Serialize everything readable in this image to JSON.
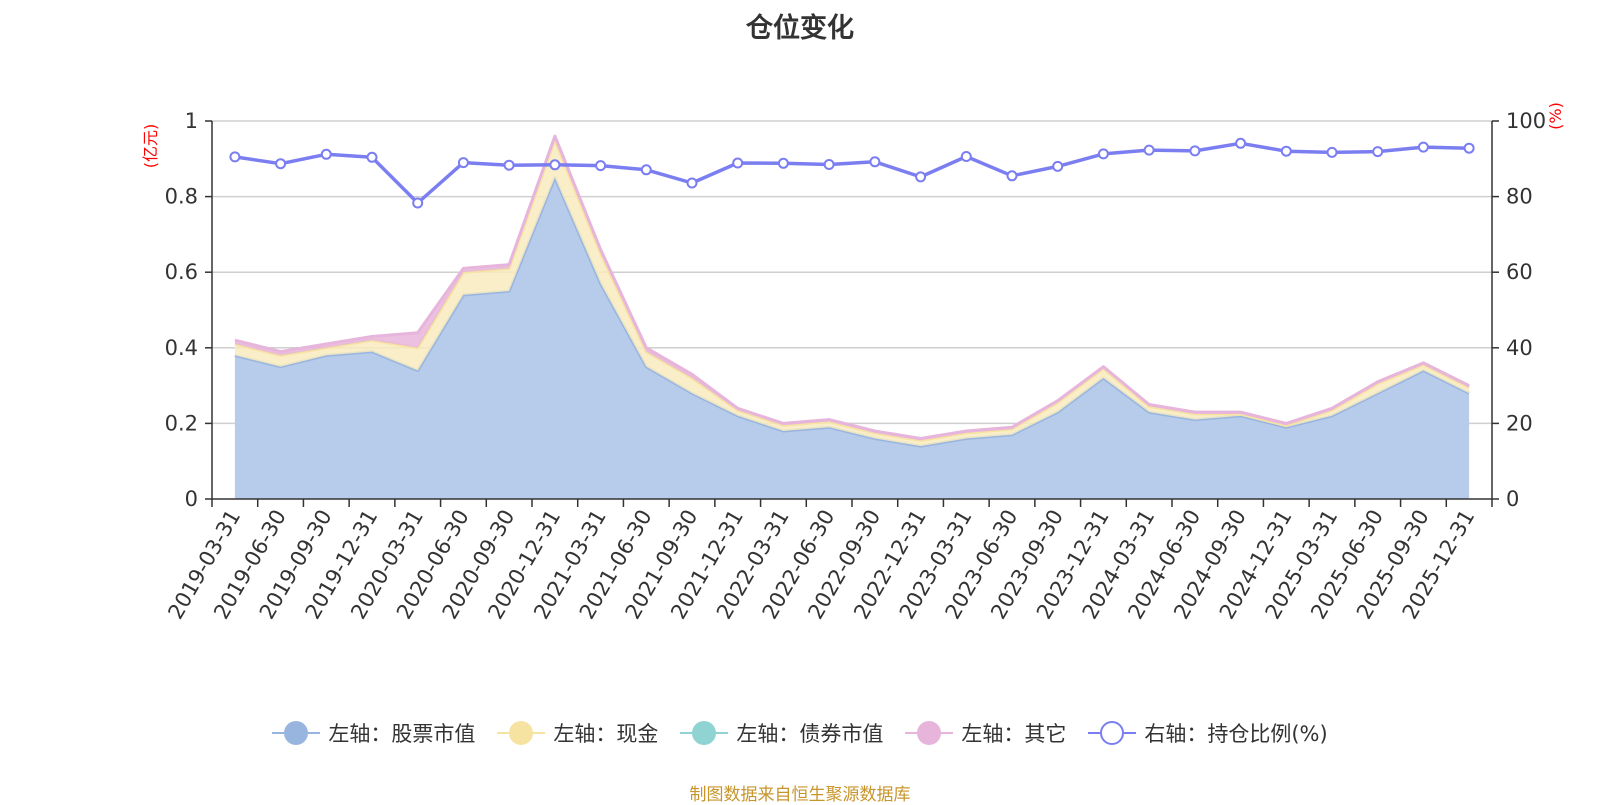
{
  "title": "仓位变化",
  "source_note": "制图数据来自恒生聚源数据库",
  "colors": {
    "stock": "#98b5e0",
    "stock_fill": "#b7cbea",
    "cash": "#f6e3a1",
    "cash_fill": "#f8ebbe",
    "bond": "#8fd3d3",
    "other": "#e7b5dc",
    "ratio": "#7b7ef1",
    "axis_unit": "#ff0000",
    "source": "#c8952b"
  },
  "chart_data": {
    "type": "area",
    "title": "仓位变化",
    "left_axis": {
      "unit_label": "(亿元)",
      "ylim": [
        0,
        1
      ],
      "ticks": [
        "0",
        "0.2",
        "0.4",
        "0.6",
        "0.8",
        "1"
      ]
    },
    "right_axis": {
      "unit_label": "(%)",
      "ylim": [
        0,
        100
      ],
      "ticks": [
        "0",
        "20",
        "40",
        "60",
        "80",
        "100"
      ]
    },
    "categories": [
      "2019-03-31",
      "2019-06-30",
      "2019-09-30",
      "2019-12-31",
      "2020-03-31",
      "2020-06-30",
      "2020-09-30",
      "2020-12-31",
      "2021-03-31",
      "2021-06-30",
      "2021-09-30",
      "2021-12-31",
      "2022-03-31",
      "2022-06-30",
      "2022-09-30",
      "2022-12-31",
      "2023-03-31",
      "2023-06-30",
      "2023-09-30",
      "2023-12-31",
      "2024-03-31",
      "2024-06-30",
      "2024-09-30",
      "2024-12-31",
      "2025-03-31",
      "2025-06-30",
      "2025-09-30",
      "2025-12-31"
    ],
    "series": [
      {
        "name": "左轴：股票市值",
        "axis": "left",
        "stacked": true,
        "icon": "filled-circle",
        "values": [
          0.38,
          0.35,
          0.38,
          0.39,
          0.34,
          0.54,
          0.55,
          0.85,
          0.57,
          0.35,
          0.28,
          0.22,
          0.18,
          0.19,
          0.16,
          0.14,
          0.16,
          0.17,
          0.23,
          0.32,
          0.23,
          0.21,
          0.22,
          0.19,
          0.22,
          0.28,
          0.34,
          0.28
        ]
      },
      {
        "name": "左轴：现金",
        "axis": "left",
        "stacked": true,
        "icon": "filled-circle",
        "values": [
          0.03,
          0.03,
          0.02,
          0.03,
          0.06,
          0.06,
          0.06,
          0.1,
          0.08,
          0.04,
          0.04,
          0.015,
          0.015,
          0.015,
          0.015,
          0.015,
          0.015,
          0.015,
          0.025,
          0.025,
          0.015,
          0.015,
          0.005,
          0.005,
          0.015,
          0.025,
          0.015,
          0.015
        ]
      },
      {
        "name": "左轴：债券市值",
        "axis": "left",
        "stacked": true,
        "icon": "filled-circle",
        "values": [
          0,
          0,
          0,
          0,
          0,
          0,
          0,
          0,
          0,
          0,
          0,
          0,
          0,
          0,
          0,
          0,
          0,
          0,
          0,
          0,
          0,
          0,
          0,
          0,
          0,
          0,
          0,
          0
        ]
      },
      {
        "name": "左轴：其它",
        "axis": "left",
        "stacked": true,
        "icon": "filled-circle",
        "values": [
          0.01,
          0.01,
          0.01,
          0.01,
          0.04,
          0.01,
          0.01,
          0.01,
          0.01,
          0.01,
          0.01,
          0.005,
          0.005,
          0.005,
          0.005,
          0.005,
          0.005,
          0.005,
          0.005,
          0.005,
          0.005,
          0.005,
          0.005,
          0.005,
          0.005,
          0.005,
          0.005,
          0.005
        ]
      },
      {
        "name": "右轴：持仓比例(%)",
        "axis": "right",
        "type": "line",
        "icon": "hollow-circle",
        "values": [
          90.5,
          88.7,
          91.2,
          90.4,
          78.3,
          89,
          88.3,
          88.4,
          88.2,
          87.1,
          83.6,
          88.9,
          88.8,
          88.5,
          89.2,
          85.2,
          90.6,
          85.5,
          88,
          91.3,
          92.3,
          92.1,
          94.1,
          92,
          91.7,
          91.9,
          93.1,
          92.8
        ]
      }
    ]
  }
}
